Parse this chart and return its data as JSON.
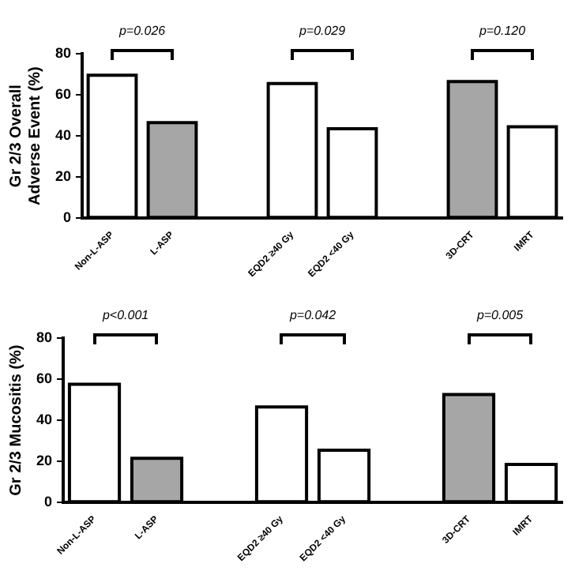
{
  "chart_data": [
    {
      "type": "bar",
      "ylabel": "Gr 2/3 Overall Adverse Event (%)",
      "categories": [
        "Non-L-ASP",
        "L-ASP",
        null,
        "EQD2 ≥40 Gy",
        "EQD2 <40 Gy",
        null,
        "3D-CRT",
        "IMRT"
      ],
      "values": [
        69.5,
        46.5,
        null,
        65.5,
        43.5,
        null,
        66.5,
        44.5
      ],
      "colors": [
        "#ffffff",
        "#a6a6a6",
        "#ffffff",
        "#ffffff",
        "#ffffff",
        "#ffffff",
        "#a6a6a6",
        "#ffffff"
      ],
      "ylim": [
        0,
        80
      ],
      "yticks": [
        0,
        20,
        40,
        60,
        80
      ],
      "grid": false,
      "legend": false,
      "annotations": [
        "p=0.026",
        "p=0.029",
        "p=0.120"
      ]
    },
    {
      "type": "bar",
      "ylabel": "Gr 2/3 Mucositis (%)",
      "categories": [
        "Non-L-ASP",
        "L-ASP",
        null,
        "EQD2 ≥40 Gy",
        "EQD2 <40 Gy",
        null,
        "3D-CRT",
        "IMRT"
      ],
      "values": [
        57.5,
        21.5,
        null,
        46.5,
        25.5,
        null,
        52.5,
        18.5
      ],
      "colors": [
        "#ffffff",
        "#a6a6a6",
        "#ffffff",
        "#ffffff",
        "#ffffff",
        "#ffffff",
        "#a6a6a6",
        "#ffffff"
      ],
      "ylim": [
        0,
        80
      ],
      "yticks": [
        0,
        20,
        40,
        60,
        80
      ],
      "grid": false,
      "legend": false,
      "annotations": [
        "p<0.001",
        "p=0.042",
        "p=0.005"
      ]
    }
  ]
}
